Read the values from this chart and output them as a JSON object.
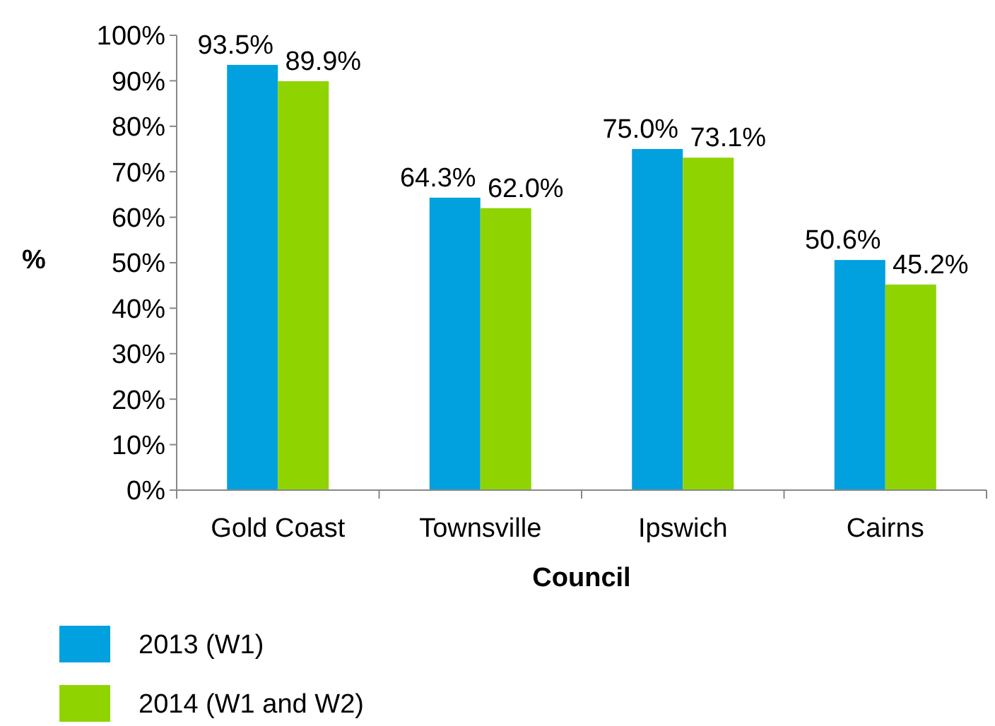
{
  "chart_data": {
    "type": "bar",
    "xlabel": "Council",
    "ylabel": "%",
    "categories": [
      "Gold Coast",
      "Townsville",
      "Ipswich",
      "Cairns"
    ],
    "series": [
      {
        "name": "2013 (W1)",
        "color": "#00a1de",
        "values": [
          93.5,
          64.3,
          75.0,
          50.6
        ],
        "value_labels": [
          "93.5%",
          "64.3%",
          "75.0%",
          "50.6%"
        ]
      },
      {
        "name": "2014 (W1 and W2)",
        "color": "#8fd400",
        "values": [
          89.9,
          62.0,
          73.1,
          45.2
        ],
        "value_labels": [
          "89.9%",
          "62.0%",
          "73.1%",
          "45.2%"
        ]
      }
    ],
    "ylim": [
      0,
      100
    ],
    "yticks": [
      {
        "value": 0,
        "label": "0%"
      },
      {
        "value": 10,
        "label": "10%"
      },
      {
        "value": 20,
        "label": "20%"
      },
      {
        "value": 30,
        "label": "30%"
      },
      {
        "value": 40,
        "label": "40%"
      },
      {
        "value": 50,
        "label": "50%"
      },
      {
        "value": 60,
        "label": "60%"
      },
      {
        "value": 70,
        "label": "70%"
      },
      {
        "value": 80,
        "label": "80%"
      },
      {
        "value": 90,
        "label": "90%"
      },
      {
        "value": 100,
        "label": "100%"
      }
    ],
    "grid": false,
    "legend": "bottom"
  }
}
